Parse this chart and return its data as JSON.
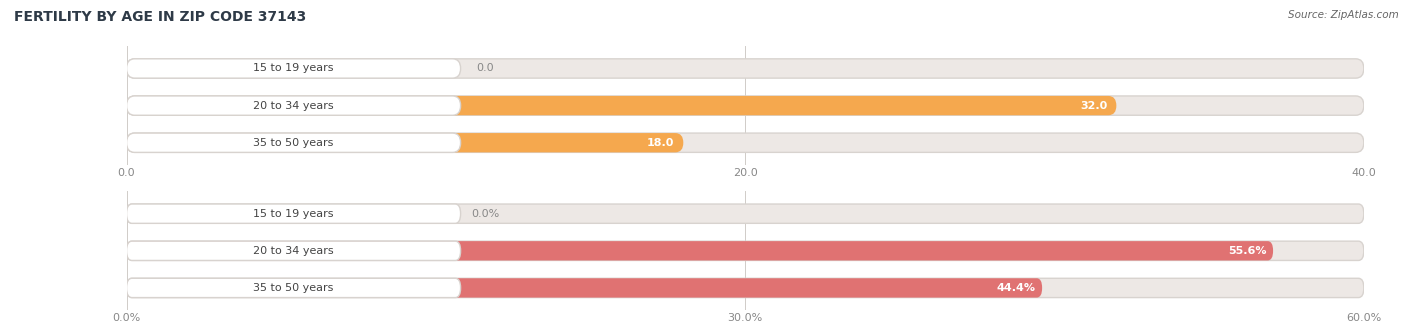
{
  "title": "FERTILITY BY AGE IN ZIP CODE 37143",
  "source": "Source: ZipAtlas.com",
  "top_chart": {
    "categories": [
      "15 to 19 years",
      "20 to 34 years",
      "35 to 50 years"
    ],
    "values": [
      0.0,
      32.0,
      18.0
    ],
    "xlim": [
      0,
      40
    ],
    "xticks": [
      0.0,
      20.0,
      40.0
    ],
    "xtick_labels": [
      "0.0",
      "20.0",
      "40.0"
    ],
    "bar_color": "#f5a84e",
    "bar_bg_color": "#ede8e5",
    "value_labels": [
      "0.0",
      "32.0",
      "18.0"
    ],
    "value_label_color_inside": "#ffffff",
    "value_label_color_outside": "#888888"
  },
  "bottom_chart": {
    "categories": [
      "15 to 19 years",
      "20 to 34 years",
      "35 to 50 years"
    ],
    "values": [
      0.0,
      55.6,
      44.4
    ],
    "xlim": [
      0,
      60
    ],
    "xticks": [
      0.0,
      30.0,
      60.0
    ],
    "xtick_labels": [
      "0.0%",
      "30.0%",
      "60.0%"
    ],
    "bar_color": "#e07272",
    "bar_bg_color": "#ede8e5",
    "value_labels": [
      "0.0%",
      "55.6%",
      "44.4%"
    ],
    "value_label_color_inside": "#ffffff",
    "value_label_color_outside": "#888888"
  },
  "label_color": "#444444",
  "title_color": "#2e3a47",
  "source_color": "#666666",
  "title_fontsize": 10,
  "label_fontsize": 8,
  "value_fontsize": 8,
  "tick_fontsize": 8
}
